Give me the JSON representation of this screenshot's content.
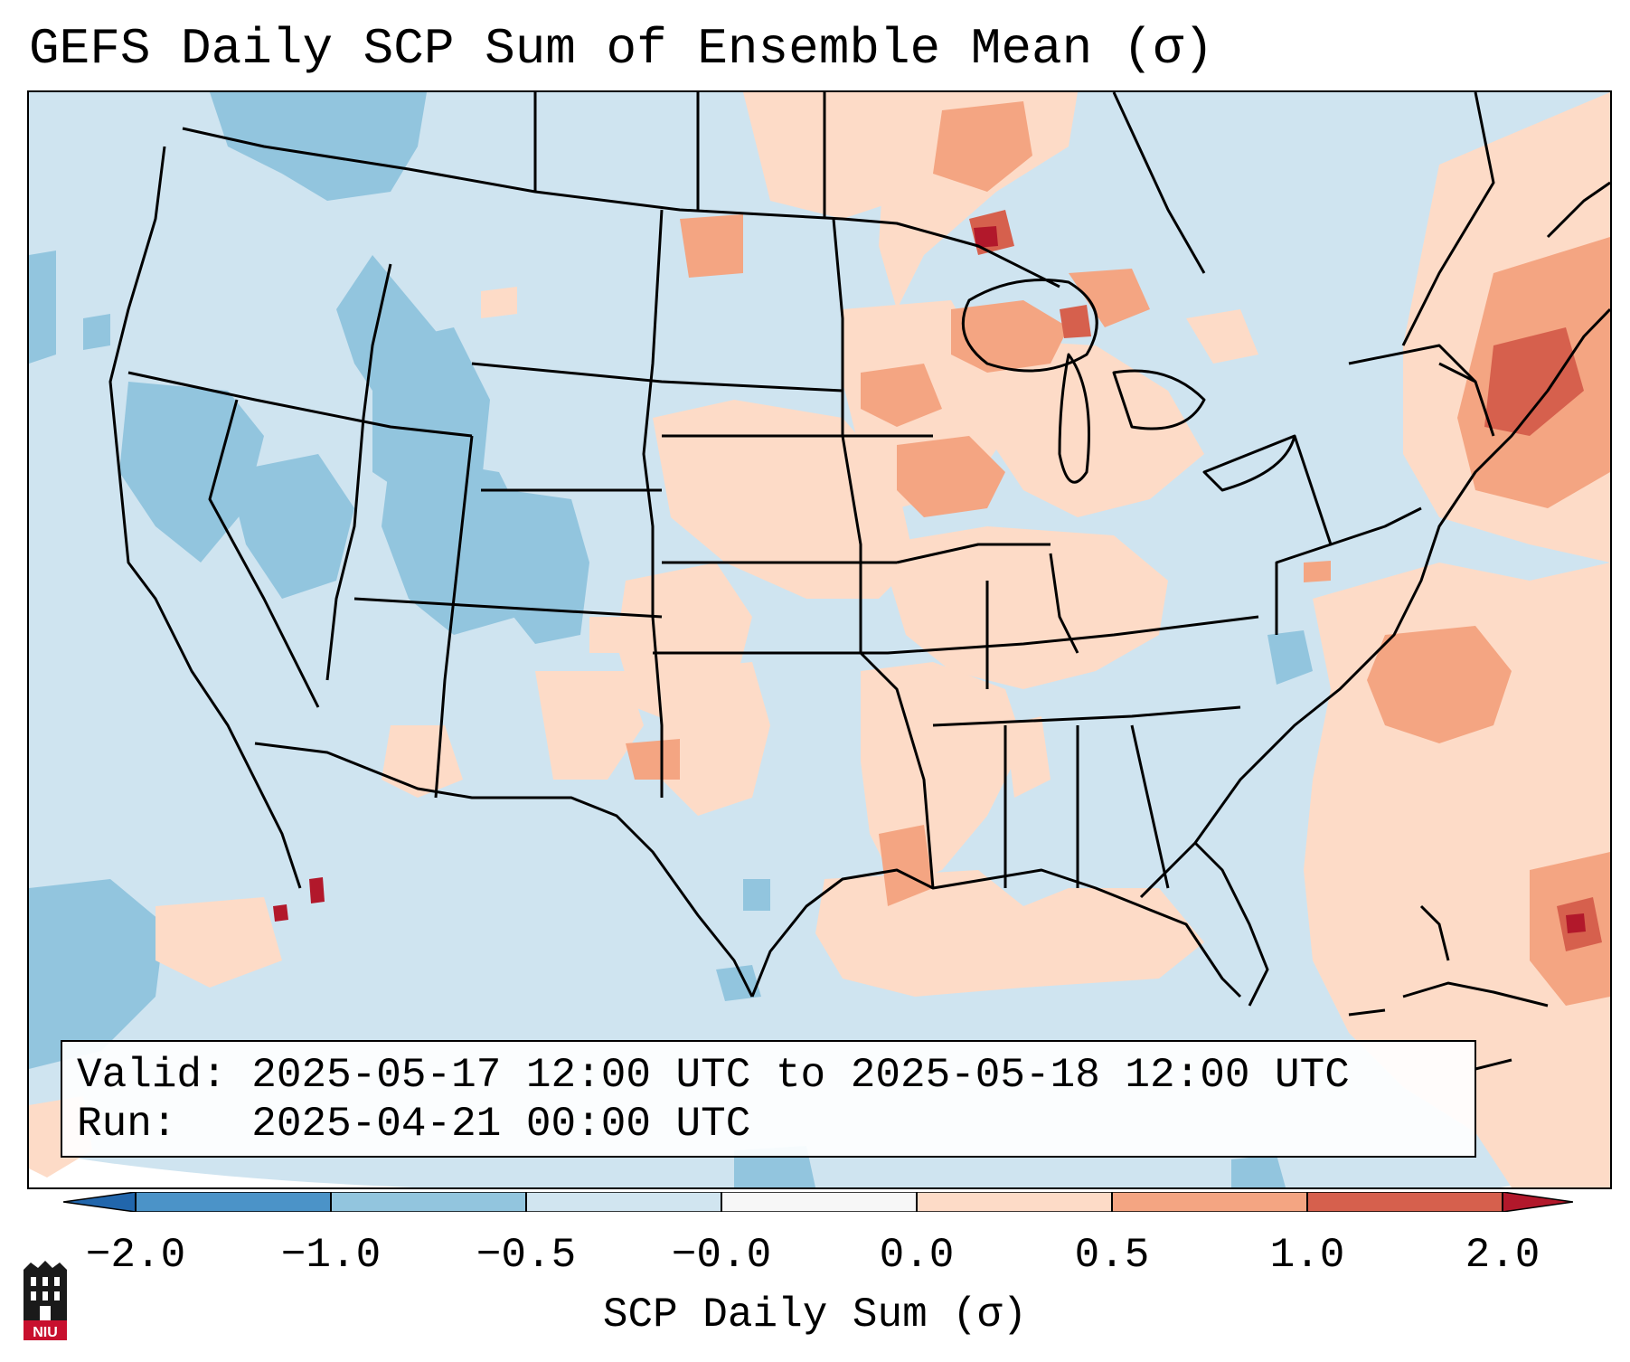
{
  "title": "GEFS Daily SCP Sum of Ensemble Mean (σ)",
  "info": {
    "valid_label": "Valid:",
    "valid_value": "2025-05-17 12:00 UTC to 2025-05-18 12:00 UTC",
    "run_label": "Run:",
    "run_value": "2025-04-21 00:00 UTC"
  },
  "colorbar": {
    "label": "SCP Daily Sum (σ)",
    "ticks": [
      "−2.0",
      "−1.0",
      "−0.5",
      "−0.0",
      "0.0",
      "0.5",
      "1.0",
      "2.0"
    ],
    "colors": [
      "#4b93c8",
      "#92c5de",
      "#d1e5f0",
      "#f7f7f7",
      "#fddbc7",
      "#f4a582",
      "#d6604d",
      "#b2182b"
    ],
    "extend": "both"
  },
  "map": {
    "projection": "lambert-conformal",
    "region": "CONUS",
    "background_color": "#cfe4f0"
  },
  "logo": {
    "text": "NIU",
    "icon": "niu-logo-icon"
  }
}
